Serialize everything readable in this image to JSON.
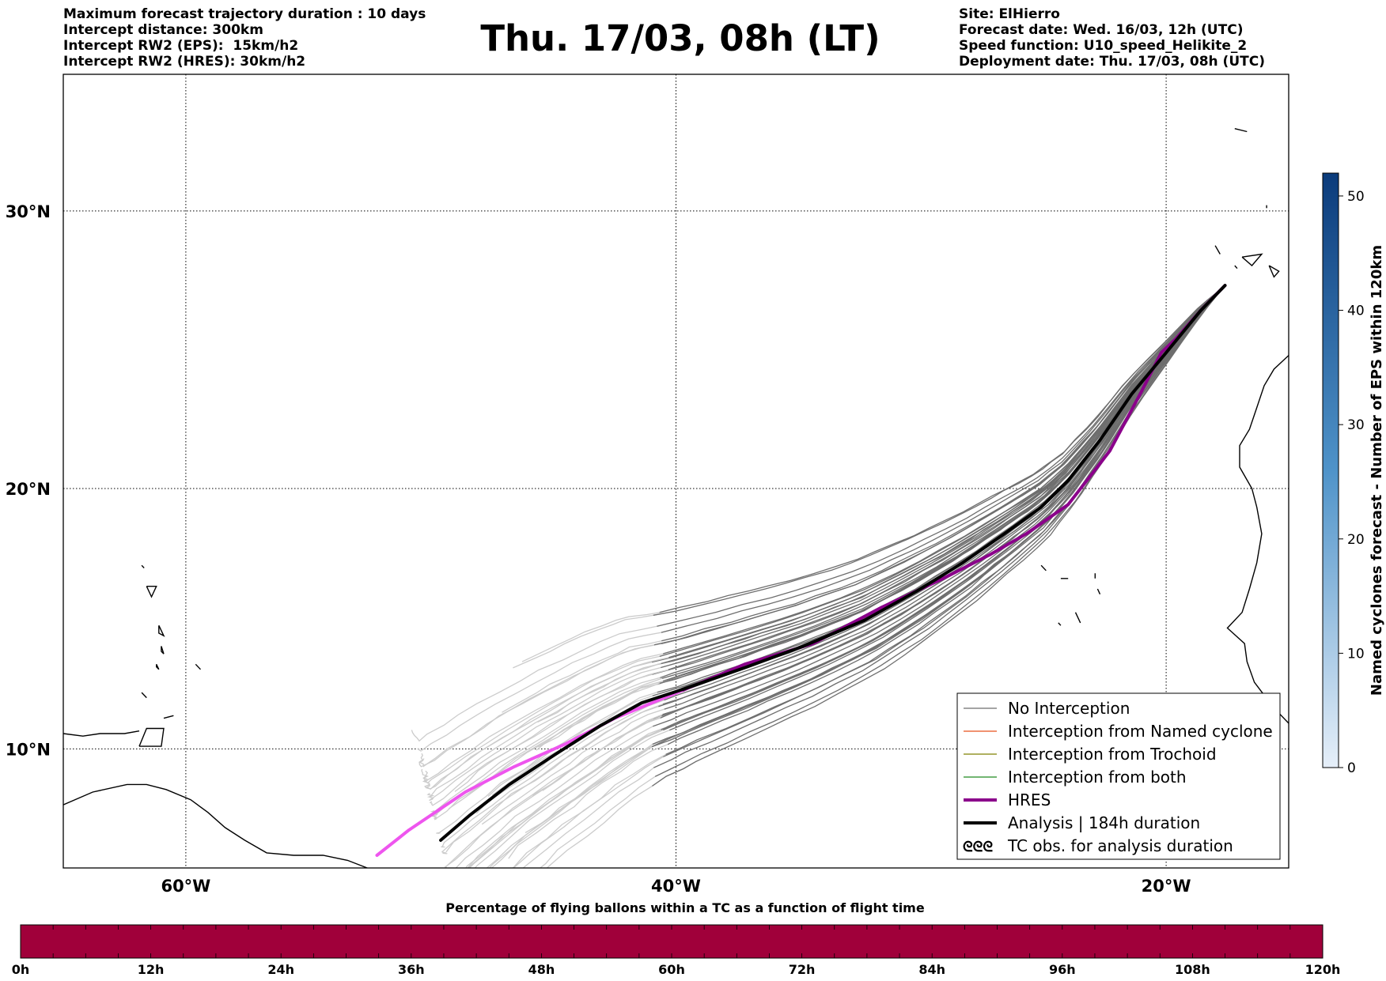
{
  "header": {
    "title": "Thu. 17/03, 08h (LT)",
    "left_lines": [
      "Maximum forecast trajectory duration : 10 days",
      "Intercept distance: 300km",
      "Intercept RW2 (EPS):  15km/h2",
      "Intercept RW2 (HRES): 30km/h2"
    ],
    "right_lines": [
      "Site: ElHierro",
      "Forecast date: Wed. 16/03, 12h (UTC)",
      "Speed function: U10_speed_Helikite_2",
      "Deployment date: Thu. 17/03, 08h (UTC)"
    ]
  },
  "map": {
    "lon_ticks": [
      {
        "lon": -60,
        "label": "60°W"
      },
      {
        "lon": -40,
        "label": "40°W"
      },
      {
        "lon": -20,
        "label": "20°W"
      }
    ],
    "lat_ticks": [
      {
        "lat": 30,
        "label": "30°N"
      },
      {
        "lat": 20,
        "label": "20°N"
      },
      {
        "lat": 10,
        "label": "10°N"
      }
    ],
    "extent": {
      "lon_min": -65,
      "lon_max": -15,
      "lat_min": 5.3,
      "lat_max": 34.6
    },
    "site": {
      "name": "ElHierro",
      "lon": -17.6,
      "lat": 27.4
    },
    "colors": {
      "no_interception": "#6e6e6e",
      "no_interception_light": "#cccccc",
      "named_cyclone": "#e8501c",
      "trochoid": "#7f8000",
      "both": "#1f8a1f",
      "hres": "#8b008b",
      "hres_light": "#ee55ee",
      "analysis": "#000000"
    },
    "hres_track": [
      [
        -17.6,
        27.4
      ],
      [
        -18.5,
        26.6
      ],
      [
        -19.6,
        25.5
      ],
      [
        -20.2,
        25.0
      ],
      [
        -21.0,
        23.6
      ],
      [
        -22.3,
        21.4
      ],
      [
        -24.0,
        19.4
      ],
      [
        -25.7,
        18.3
      ],
      [
        -27.2,
        17.5
      ],
      [
        -29.1,
        16.6
      ],
      [
        -31.6,
        15.5
      ],
      [
        -34.4,
        14.1
      ],
      [
        -37.2,
        13.3
      ],
      [
        -39.7,
        12.3
      ],
      [
        -42.5,
        11.2
      ],
      [
        -44.5,
        10.2
      ],
      [
        -46.6,
        9.3
      ],
      [
        -48.6,
        8.3
      ],
      [
        -50.9,
        6.8
      ],
      [
        -52.2,
        5.8
      ]
    ],
    "analysis_track": [
      [
        -17.6,
        27.4
      ],
      [
        -18.6,
        26.5
      ],
      [
        -20.0,
        25.0
      ],
      [
        -21.4,
        23.5
      ],
      [
        -22.7,
        21.8
      ],
      [
        -24.0,
        20.3
      ],
      [
        -25.1,
        19.3
      ],
      [
        -26.6,
        18.3
      ],
      [
        -28.3,
        17.2
      ],
      [
        -30.2,
        16.1
      ],
      [
        -32.3,
        15.0
      ],
      [
        -34.8,
        14.0
      ],
      [
        -37.1,
        13.2
      ],
      [
        -39.8,
        12.3
      ],
      [
        -41.4,
        11.8
      ],
      [
        -43.1,
        10.9
      ],
      [
        -44.9,
        9.8
      ],
      [
        -46.8,
        8.6
      ],
      [
        -48.4,
        7.4
      ],
      [
        -49.6,
        6.4
      ]
    ],
    "coast": {
      "africa": [
        [
          -15.0,
          24.9
        ],
        [
          -15.6,
          24.4
        ],
        [
          -16.0,
          23.8
        ],
        [
          -16.3,
          23.0
        ],
        [
          -16.6,
          22.2
        ],
        [
          -17.0,
          21.6
        ],
        [
          -17.0,
          20.8
        ],
        [
          -16.5,
          20.0
        ],
        [
          -16.3,
          19.3
        ],
        [
          -16.1,
          18.3
        ],
        [
          -16.3,
          17.2
        ],
        [
          -16.6,
          16.2
        ],
        [
          -16.9,
          15.3
        ],
        [
          -17.5,
          14.7
        ],
        [
          -16.8,
          14.1
        ],
        [
          -16.7,
          13.4
        ],
        [
          -16.4,
          12.6
        ],
        [
          -16.0,
          12.1
        ],
        [
          -15.6,
          11.6
        ],
        [
          -15.0,
          11.0
        ]
      ],
      "south_america": [
        [
          -65.0,
          7.8
        ],
        [
          -63.8,
          8.3
        ],
        [
          -62.4,
          8.6
        ],
        [
          -61.6,
          8.6
        ],
        [
          -60.8,
          8.4
        ],
        [
          -59.8,
          8.0
        ],
        [
          -59.1,
          7.5
        ],
        [
          -58.4,
          6.9
        ],
        [
          -57.6,
          6.4
        ],
        [
          -56.7,
          5.9
        ],
        [
          -55.6,
          5.8
        ],
        [
          -54.4,
          5.8
        ],
        [
          -53.4,
          5.6
        ],
        [
          -52.6,
          5.3
        ]
      ],
      "venezuela_north": [
        [
          -65.0,
          10.6
        ],
        [
          -64.2,
          10.5
        ],
        [
          -63.5,
          10.6
        ],
        [
          -62.5,
          10.6
        ],
        [
          -61.9,
          10.7
        ]
      ],
      "trinidad": [
        [
          -61.9,
          10.1
        ],
        [
          -61.0,
          10.1
        ],
        [
          -60.9,
          10.8
        ],
        [
          -61.6,
          10.8
        ],
        [
          -61.9,
          10.1
        ]
      ],
      "tobago": [
        [
          -60.9,
          11.2
        ],
        [
          -60.5,
          11.3
        ]
      ],
      "antilles": [
        [
          [
            -61.6,
            16.3
          ],
          [
            -61.2,
            16.3
          ],
          [
            -61.4,
            15.9
          ],
          [
            -61.6,
            16.3
          ]
        ],
        [
          [
            -61.1,
            14.8
          ],
          [
            -60.9,
            14.4
          ],
          [
            -61.1,
            14.5
          ],
          [
            -61.1,
            14.8
          ]
        ],
        [
          [
            -61.0,
            14.0
          ],
          [
            -60.9,
            13.7
          ],
          [
            -61.0,
            13.8
          ],
          [
            -61.0,
            14.0
          ]
        ],
        [
          [
            -61.2,
            13.3
          ],
          [
            -61.1,
            13.1
          ],
          [
            -61.2,
            13.2
          ],
          [
            -61.2,
            13.3
          ]
        ],
        [
          [
            -61.8,
            12.2
          ],
          [
            -61.6,
            12.0
          ],
          [
            -61.7,
            12.1
          ],
          [
            -61.8,
            12.2
          ]
        ],
        [
          [
            -61.8,
            17.1
          ],
          [
            -61.7,
            17.0
          ],
          [
            -61.8,
            17.1
          ]
        ],
        [
          [
            -59.6,
            13.3
          ],
          [
            -59.4,
            13.1
          ],
          [
            -59.6,
            13.3
          ]
        ]
      ],
      "cape_verde": [
        [
          [
            -25.1,
            17.1
          ],
          [
            -24.9,
            16.9
          ],
          [
            -25.1,
            17.1
          ]
        ],
        [
          [
            -24.3,
            16.6
          ],
          [
            -24.0,
            16.6
          ],
          [
            -24.3,
            16.6
          ]
        ],
        [
          [
            -22.9,
            16.8
          ],
          [
            -22.9,
            16.6
          ],
          [
            -22.9,
            16.8
          ]
        ],
        [
          [
            -22.8,
            16.2
          ],
          [
            -22.7,
            16.0
          ],
          [
            -22.8,
            16.2
          ]
        ],
        [
          [
            -23.7,
            15.3
          ],
          [
            -23.5,
            14.9
          ],
          [
            -23.7,
            15.3
          ]
        ],
        [
          [
            -24.4,
            14.9
          ],
          [
            -24.3,
            14.8
          ],
          [
            -24.4,
            14.9
          ]
        ]
      ],
      "canary": [
        [
          [
            -18.0,
            28.8
          ],
          [
            -17.8,
            28.5
          ],
          [
            -18.0,
            28.8
          ]
        ],
        [
          [
            -16.9,
            28.4
          ],
          [
            -16.1,
            28.5
          ],
          [
            -16.5,
            28.1
          ],
          [
            -16.9,
            28.4
          ]
        ],
        [
          [
            -15.8,
            28.1
          ],
          [
            -15.4,
            27.9
          ],
          [
            -15.6,
            27.7
          ],
          [
            -15.8,
            28.1
          ]
        ],
        [
          [
            -17.2,
            28.1
          ],
          [
            -17.1,
            28.0
          ],
          [
            -17.2,
            28.1
          ]
        ]
      ],
      "madeira": [
        [
          -17.2,
          32.8
        ],
        [
          -16.7,
          32.7
        ],
        [
          -17.2,
          32.8
        ]
      ],
      "selvagens": [
        [
          -15.9,
          30.2
        ],
        [
          -15.9,
          30.1
        ]
      ]
    }
  },
  "legend": [
    {
      "label": "No Interception",
      "type": "line",
      "color_key": "no_interception",
      "width": 1.2
    },
    {
      "label": "Interception from Named cyclone",
      "type": "line",
      "color_key": "named_cyclone",
      "width": 1.2
    },
    {
      "label": "Interception from Trochoid",
      "type": "line",
      "color_key": "trochoid",
      "width": 1.2
    },
    {
      "label": "Interception from both",
      "type": "line",
      "color_key": "both",
      "width": 1.2
    },
    {
      "label": "HRES",
      "type": "line",
      "color_key": "hres",
      "width": 4
    },
    {
      "label": "Analysis | 184h duration",
      "type": "line",
      "color_key": "analysis",
      "width": 4
    },
    {
      "label": "TC obs. for analysis duration",
      "type": "symbol",
      "symbol": "ᘓᘓᘓ"
    }
  ],
  "colorbar_right": {
    "label": "Named cyclones forecast - Number of EPS within 120km",
    "min": 0,
    "max": 52,
    "ticks": [
      0,
      10,
      20,
      30,
      40,
      50
    ],
    "color_low": "#e6eff9",
    "color_high": "#0b3b7b"
  },
  "colorbar_bottom": {
    "title": "Percentage of flying ballons within a TC as a function of flight time",
    "fill_color": "#a0003a",
    "ticks": [
      "0h",
      "12h",
      "24h",
      "36h",
      "48h",
      "60h",
      "72h",
      "84h",
      "96h",
      "108h",
      "120h"
    ],
    "minor_ticks": 40
  }
}
